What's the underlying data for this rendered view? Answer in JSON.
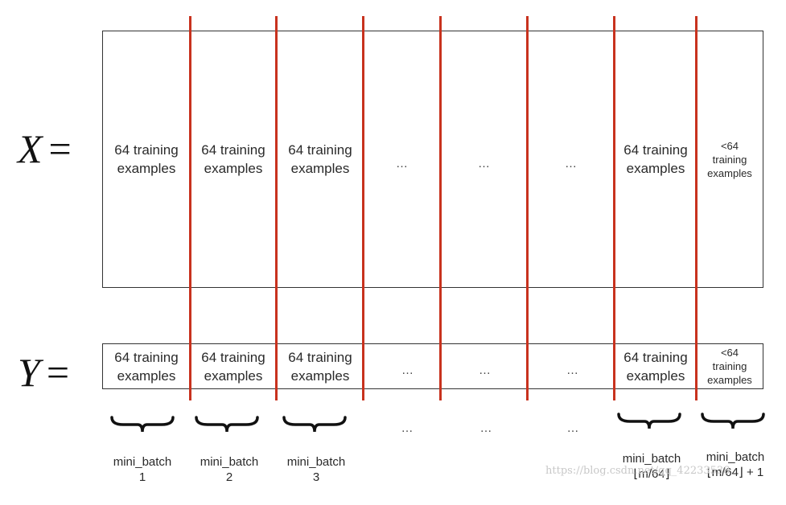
{
  "x_label": {
    "letter": "X",
    "equals": "="
  },
  "y_label": {
    "letter": "Y",
    "equals": "="
  },
  "x_cells": [
    "64 training\nexamples",
    "64 training\nexamples",
    "64 training\nexamples",
    "…",
    "…",
    "…",
    "64 training\nexamples",
    "<64\ntraining\nexamples"
  ],
  "y_cells": [
    "64 training\nexamples",
    "64 training\nexamples",
    "64 training\nexamples",
    "…",
    "…",
    "…",
    "64 training\nexamples",
    "<64\ntraining\nexamples"
  ],
  "mini_batches": [
    {
      "name": "mini_batch",
      "index": "1"
    },
    {
      "name": "mini_batch",
      "index": "2"
    },
    {
      "name": "mini_batch",
      "index": "3"
    },
    {
      "name": "…",
      "index": ""
    },
    {
      "name": "…",
      "index": ""
    },
    {
      "name": "…",
      "index": ""
    },
    {
      "name": "mini_batch",
      "index": "⌊m/64⌋"
    },
    {
      "name": "mini_batch",
      "index": "⌊m/64⌋ + 1"
    }
  ],
  "watermark": "https://blog.csdn.net/qq_42233538",
  "colors": {
    "separator": "#c8321e",
    "border": "#333333",
    "text": "#2a2a2a"
  }
}
